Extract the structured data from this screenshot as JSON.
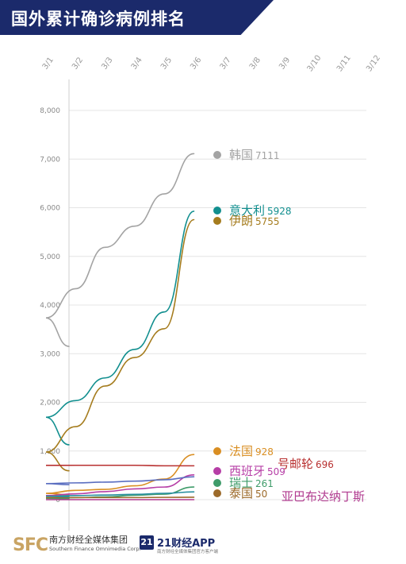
{
  "header": {
    "title": "国外累计确诊病例排名"
  },
  "footer": {
    "sfc_mark": "SFC",
    "sfc_name_cn": "南方财经全媒体集团",
    "sfc_name_en": "Southern Finance Omnimedia Corp.",
    "app_badge": "21",
    "app_name": "21财经APP",
    "app_slogan": "南方财经全媒体集团官方客户端"
  },
  "chart_data": {
    "type": "line",
    "title": "国外累计确诊病例排名",
    "xlabel": "",
    "ylabel": "",
    "x_ticks": [
      "3/1",
      "3/2",
      "3/3",
      "3/4",
      "3/5",
      "3/6",
      "3/7",
      "3/8",
      "3/9",
      "3/10",
      "3/11",
      "3/12"
    ],
    "y_ticks": [
      "0",
      "1,000",
      "2,000",
      "3,000",
      "4,000",
      "5,000",
      "6,000",
      "7,000",
      "8,000"
    ],
    "ylim": [
      0,
      8000
    ],
    "grid": true,
    "series": [
      {
        "name": "韩国",
        "value_label": "7111",
        "color": "#a3a3a3",
        "x": [
          "2/29",
          "3/1",
          "3/2",
          "3/3",
          "3/4",
          "3/5",
          "3/6"
        ],
        "values": [
          3150,
          3736,
          4335,
          5186,
          5621,
          6284,
          7111
        ]
      },
      {
        "name": "意大利",
        "value_label": "5928",
        "color": "#128f8f",
        "x": [
          "2/29",
          "3/1",
          "3/2",
          "3/3",
          "3/4",
          "3/5",
          "3/6"
        ],
        "values": [
          1128,
          1694,
          2036,
          2502,
          3089,
          3858,
          5928
        ]
      },
      {
        "name": "伊朗",
        "value_label": "5755",
        "color": "#a57c1e",
        "x": [
          "2/29",
          "3/1",
          "3/2",
          "3/3",
          "3/4",
          "3/5",
          "3/6"
        ],
        "values": [
          593,
          978,
          1501,
          2336,
          2922,
          3513,
          5755
        ]
      },
      {
        "name": "法国",
        "value_label": "928",
        "color": "#d98e22",
        "x": [
          "2/29",
          "3/1",
          "3/2",
          "3/3",
          "3/4",
          "3/5",
          "3/6"
        ],
        "values": [
          100,
          130,
          191,
          212,
          285,
          423,
          928
        ]
      },
      {
        "name": "钻石公主号邮轮",
        "value_label": "696",
        "color": "#b83030",
        "x": [
          "2/29",
          "3/1",
          "3/2",
          "3/3",
          "3/4",
          "3/5",
          "3/6"
        ],
        "values": [
          705,
          705,
          706,
          706,
          706,
          696,
          696
        ]
      },
      {
        "name": "西班牙",
        "value_label": "509",
        "color": "#b63ea6",
        "x": [
          "2/29",
          "3/1",
          "3/2",
          "3/3",
          "3/4",
          "3/5",
          "3/6"
        ],
        "values": [
          45,
          84,
          120,
          165,
          222,
          259,
          509
        ]
      },
      {
        "name": "瑞士",
        "value_label": "261",
        "color": "#3f9c6a",
        "x": [
          "2/29",
          "3/1",
          "3/2",
          "3/3",
          "3/4",
          "3/5",
          "3/6"
        ],
        "values": [
          18,
          27,
          42,
          56,
          90,
          114,
          261
        ]
      },
      {
        "name": "泰国",
        "value_label": "50",
        "color": "#9c6a2a",
        "x": [
          "2/29",
          "3/1",
          "3/2",
          "3/3",
          "3/4",
          "3/5",
          "3/6"
        ],
        "values": [
          42,
          42,
          43,
          43,
          43,
          47,
          50
        ]
      },
      {
        "name": "安提瓜和巴布达纳丁斯",
        "value_label": "",
        "color": "#b03a8f",
        "x": [
          "2/29",
          "3/1",
          "3/2",
          "3/3",
          "3/4",
          "3/5",
          "3/6"
        ],
        "values": [
          0,
          0,
          0,
          0,
          0,
          0,
          0
        ]
      },
      {
        "name": "",
        "value_label": "",
        "color": "#5a6ec0",
        "x": [
          "2/29",
          "3/1",
          "3/2",
          "3/3",
          "3/4",
          "3/5",
          "3/6"
        ],
        "values": [
          310,
          330,
          345,
          360,
          380,
          410,
          470
        ]
      },
      {
        "name": "",
        "value_label": "",
        "color": "#2a8fa0",
        "x": [
          "2/29",
          "3/1",
          "3/2",
          "3/3",
          "3/4",
          "3/5",
          "3/6"
        ],
        "values": [
          60,
          70,
          85,
          95,
          110,
          130,
          160
        ]
      }
    ],
    "visible_labels": [
      {
        "series": "韩国",
        "text": "韩国",
        "value": "7111"
      },
      {
        "series": "意大利",
        "text": "意大利",
        "value": "5928"
      },
      {
        "series": "伊朗",
        "text": "伊朗",
        "value": "5755"
      },
      {
        "series": "法国",
        "text": "法国",
        "value": "928"
      },
      {
        "series": "钻石公主号邮轮",
        "text": "号邮轮",
        "value": "696"
      },
      {
        "series": "西班牙",
        "text": "西班牙",
        "value": "509"
      },
      {
        "series": "瑞士",
        "text": "瑞士",
        "value": "261"
      },
      {
        "series": "泰国",
        "text": "泰国",
        "value": "50"
      },
      {
        "series": "安提瓜和巴布达纳丁斯",
        "text": "亚巴布达纳丁斯",
        "value": ""
      }
    ]
  }
}
